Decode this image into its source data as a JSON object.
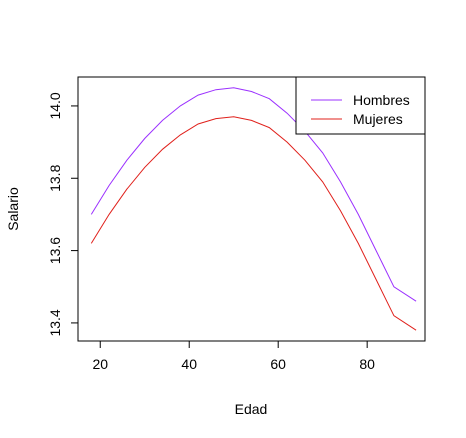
{
  "chart_data": {
    "type": "line",
    "xlabel": "Edad",
    "ylabel": "Salario",
    "xlim": [
      15,
      93
    ],
    "ylim": [
      13.35,
      14.08
    ],
    "xticks": [
      20,
      40,
      60,
      80
    ],
    "yticks": [
      13.4,
      13.6,
      13.8,
      14.0
    ],
    "xtick_labels": [
      "20",
      "40",
      "60",
      "80"
    ],
    "ytick_labels": [
      "13.4",
      "13.6",
      "13.8",
      "14.0"
    ],
    "grid": false,
    "legend_position": "top-right",
    "x": [
      18,
      22,
      26,
      30,
      34,
      38,
      42,
      46,
      50,
      54,
      58,
      62,
      66,
      70,
      74,
      78,
      82,
      86,
      91
    ],
    "series": [
      {
        "name": "Hombres",
        "color": "#9b30ff",
        "values": [
          13.7,
          13.78,
          13.85,
          13.91,
          13.96,
          14.0,
          14.03,
          14.045,
          14.05,
          14.04,
          14.02,
          13.98,
          13.93,
          13.87,
          13.79,
          13.7,
          13.6,
          13.5,
          13.46
        ]
      },
      {
        "name": "Mujeres",
        "color": "#e0201b",
        "values": [
          13.62,
          13.7,
          13.77,
          13.83,
          13.88,
          13.92,
          13.95,
          13.965,
          13.97,
          13.96,
          13.94,
          13.9,
          13.85,
          13.79,
          13.71,
          13.62,
          13.52,
          13.42,
          13.38
        ]
      }
    ]
  }
}
